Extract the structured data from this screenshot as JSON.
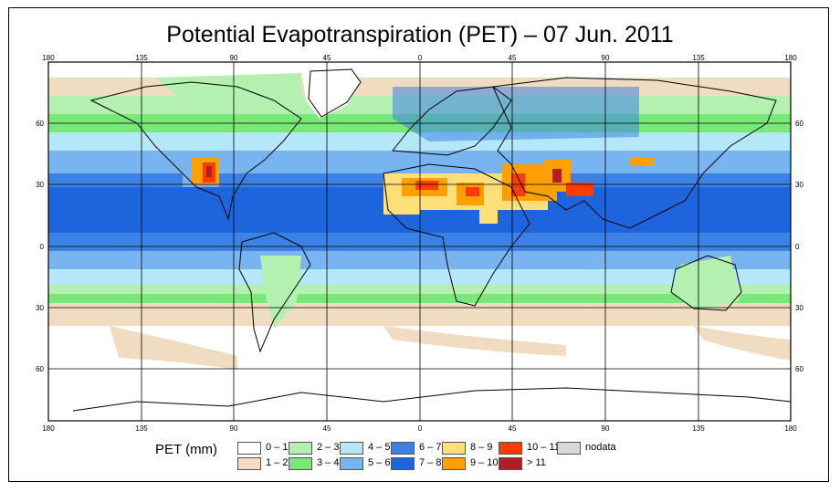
{
  "title": "Potential Evapotranspiration (PET) – 07 Jun. 2011",
  "axes": {
    "lon_ticks": [
      "180",
      "135",
      "90",
      "45",
      "0",
      "45",
      "90",
      "135",
      "180"
    ],
    "lat_ticks": [
      "60",
      "30",
      "0",
      "30",
      "60"
    ]
  },
  "legend": {
    "label": "PET (mm)",
    "items": [
      {
        "label": "0 – 1",
        "color": "#ffffff"
      },
      {
        "label": "1 – 2",
        "color": "#f0dcc0"
      },
      {
        "label": "2 – 3",
        "color": "#b4f0b0"
      },
      {
        "label": "3 – 4",
        "color": "#78e878"
      },
      {
        "label": "4 – 5",
        "color": "#b4e8f8"
      },
      {
        "label": "5 – 6",
        "color": "#78b4f0"
      },
      {
        "label": "6 – 7",
        "color": "#3c82e6"
      },
      {
        "label": "7 – 8",
        "color": "#1e64dc"
      },
      {
        "label": "8 – 9",
        "color": "#ffe078"
      },
      {
        "label": "9 – 10",
        "color": "#ffa000"
      },
      {
        "label": "10 – 11",
        "color": "#ff3c00"
      },
      {
        "label": "> 11",
        "color": "#b41e1e"
      },
      {
        "label": "nodata",
        "color": "#d8d8d8"
      }
    ]
  },
  "colors": {
    "ocean_polar": "#ffffff",
    "land_outline": "#000000"
  }
}
